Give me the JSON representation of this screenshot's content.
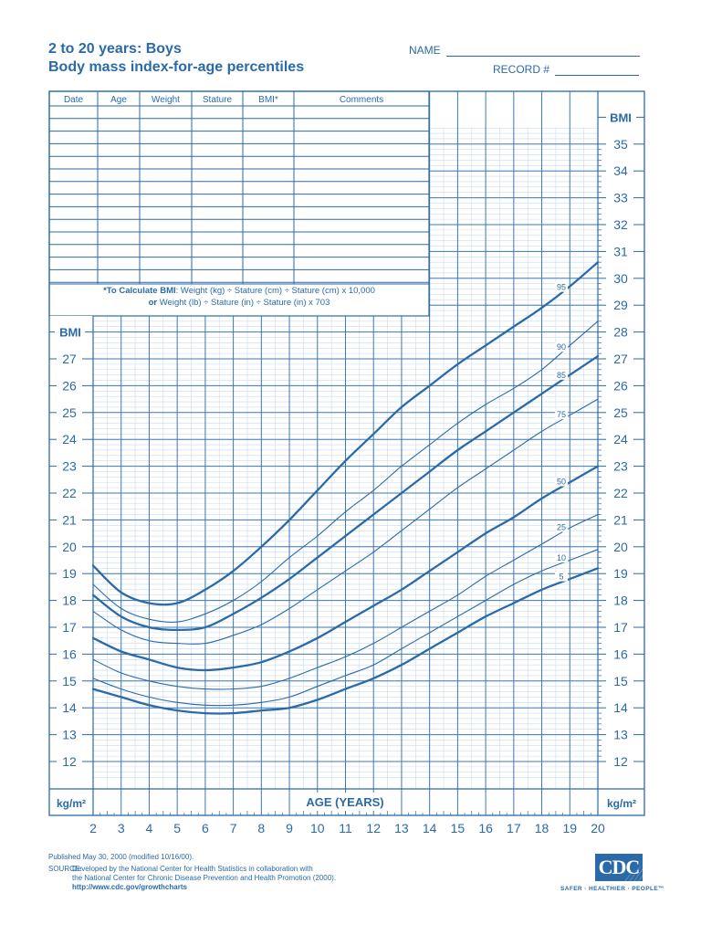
{
  "header": {
    "title_line1": "2 to 20 years: Boys",
    "title_line2": "Body mass index-for-age percentiles",
    "name_label": "NAME",
    "record_label": "RECORD #"
  },
  "record_table": {
    "columns": [
      "Date",
      "Age",
      "Weight",
      "Stature",
      "BMI*",
      "Comments"
    ],
    "rows": 14
  },
  "calc_note": {
    "bold_prefix": "*To Calculate BMI",
    "line1_rest": ": Weight (kg) ÷ Stature (cm) ÷ Stature (cm) x 10,000",
    "line2_bold": "or",
    "line2_rest": " Weight (lb) ÷ Stature (in) ÷ Stature (in) x 703"
  },
  "footer": {
    "published": "Published May 30, 2000 (modified 10/16/00).",
    "source_label": "SOURCE:",
    "source_line1": "Developed by the National Center for Health Statistics in collaboration with",
    "source_line2": "the National Center for Chronic Disease Prevention and Health Promotion (2000).",
    "url": "http://www.cdc.gov/growthcharts",
    "logo_text": "CDC",
    "tagline": "SAFER · HEALTHIER · PEOPLE™"
  },
  "colors": {
    "primary": "#2b6aa8",
    "grid_major": "#3c78b4",
    "grid_minor": "#c9dbee"
  },
  "chart_data": {
    "type": "line",
    "title": "Body mass index-for-age percentiles, 2 to 20 years: Boys",
    "xlabel": "AGE (YEARS)",
    "ylabel": "BMI",
    "y_unit_label": "kg/m²",
    "xlim": [
      2,
      20
    ],
    "ylim_left": [
      12,
      27
    ],
    "ylim_right": [
      12,
      35
    ],
    "x_ticks": [
      2,
      3,
      4,
      5,
      6,
      7,
      8,
      9,
      10,
      11,
      12,
      13,
      14,
      15,
      16,
      17,
      18,
      19,
      20
    ],
    "y_ticks_left": [
      12,
      13,
      14,
      15,
      16,
      17,
      18,
      19,
      20,
      21,
      22,
      23,
      24,
      25,
      26,
      27
    ],
    "y_ticks_right": [
      12,
      13,
      14,
      15,
      16,
      17,
      18,
      19,
      20,
      21,
      22,
      23,
      24,
      25,
      26,
      27,
      28,
      29,
      30,
      31,
      32,
      33,
      34,
      35
    ],
    "grid": true,
    "x": [
      2,
      3,
      4,
      5,
      6,
      7,
      8,
      9,
      10,
      11,
      12,
      13,
      14,
      15,
      16,
      17,
      18,
      19,
      20
    ],
    "series": [
      {
        "name": "95",
        "weight": "bold",
        "label_at": 18.7,
        "values": [
          19.3,
          18.3,
          17.9,
          17.9,
          18.4,
          19.1,
          20.0,
          21.0,
          22.1,
          23.2,
          24.2,
          25.2,
          26.0,
          26.8,
          27.5,
          28.2,
          28.9,
          29.7,
          30.6
        ]
      },
      {
        "name": "90",
        "weight": "thin",
        "label_at": 18.7,
        "values": [
          18.6,
          17.7,
          17.3,
          17.2,
          17.5,
          18.0,
          18.7,
          19.6,
          20.4,
          21.3,
          22.1,
          23.0,
          23.8,
          24.6,
          25.3,
          25.9,
          26.6,
          27.5,
          28.4
        ]
      },
      {
        "name": "85",
        "weight": "bold",
        "label_at": 18.7,
        "values": [
          18.2,
          17.4,
          17.0,
          16.9,
          17.0,
          17.5,
          18.1,
          18.8,
          19.6,
          20.4,
          21.2,
          22.0,
          22.8,
          23.6,
          24.3,
          25.0,
          25.7,
          26.4,
          27.1
        ]
      },
      {
        "name": "75",
        "weight": "thin",
        "label_at": 18.7,
        "values": [
          17.6,
          16.9,
          16.5,
          16.4,
          16.4,
          16.7,
          17.1,
          17.7,
          18.4,
          19.1,
          19.8,
          20.6,
          21.4,
          22.2,
          22.9,
          23.6,
          24.3,
          24.9,
          25.5
        ]
      },
      {
        "name": "50",
        "weight": "bold",
        "label_at": 18.7,
        "values": [
          16.6,
          16.1,
          15.8,
          15.5,
          15.4,
          15.5,
          15.7,
          16.1,
          16.6,
          17.2,
          17.8,
          18.4,
          19.1,
          19.8,
          20.5,
          21.1,
          21.8,
          22.4,
          23.0
        ]
      },
      {
        "name": "25",
        "weight": "thin",
        "label_at": 18.7,
        "values": [
          15.8,
          15.3,
          15.0,
          14.8,
          14.7,
          14.7,
          14.8,
          15.1,
          15.5,
          15.9,
          16.4,
          17.0,
          17.6,
          18.2,
          18.9,
          19.5,
          20.1,
          20.7,
          21.2
        ]
      },
      {
        "name": "10",
        "weight": "thin",
        "label_at": 18.7,
        "values": [
          15.1,
          14.7,
          14.4,
          14.2,
          14.1,
          14.1,
          14.2,
          14.4,
          14.8,
          15.2,
          15.6,
          16.2,
          16.8,
          17.4,
          18.0,
          18.6,
          19.1,
          19.5,
          19.9
        ]
      },
      {
        "name": "5",
        "weight": "bold",
        "label_at": 18.7,
        "values": [
          14.7,
          14.4,
          14.1,
          13.9,
          13.8,
          13.8,
          13.9,
          14.0,
          14.3,
          14.7,
          15.1,
          15.6,
          16.2,
          16.8,
          17.4,
          17.9,
          18.4,
          18.8,
          19.2
        ]
      }
    ]
  }
}
